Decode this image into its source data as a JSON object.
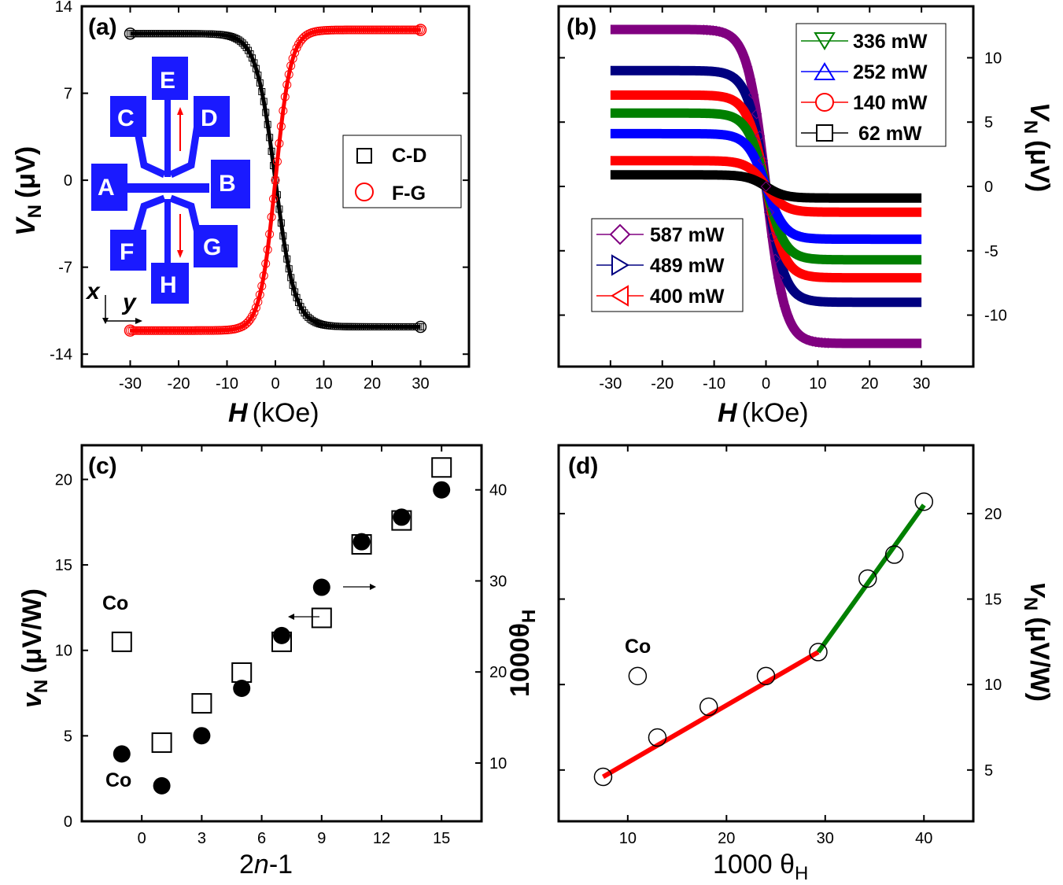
{
  "chart_data": [
    {
      "panel": "(a)",
      "type": "line",
      "xlabel_italic": "H",
      "xlabel_unit": "(kOe)",
      "ylabel_main": "V",
      "ylabel_sub": "N",
      "ylabel_unit": "(μV)",
      "xlim": [
        -40,
        40
      ],
      "ylim": [
        -15,
        14
      ],
      "xticks": [
        -30,
        -20,
        -10,
        0,
        10,
        20,
        30
      ],
      "yticks": [
        14,
        7,
        0,
        -7,
        -14
      ],
      "legend": [
        {
          "label": "C-D",
          "color": "#000000",
          "marker": "square"
        },
        {
          "label": "F-G",
          "color": "#ff0000",
          "marker": "circle"
        }
      ],
      "series": [
        {
          "name": "C-D",
          "color": "#000000",
          "saturation": 11.8,
          "field_scale": 4.0,
          "sign": -1
        },
        {
          "name": "F-G",
          "color": "#ff0000",
          "saturation": 12.1,
          "field_scale": 3.2,
          "sign": 1
        }
      ],
      "inset": {
        "pads": [
          "A",
          "B",
          "C",
          "D",
          "E",
          "F",
          "G",
          "H"
        ],
        "axis_x": "x",
        "axis_y": "y",
        "pad_color": "#1a1aff",
        "arrow_color": "#ff0000"
      }
    },
    {
      "panel": "(b)",
      "type": "line",
      "xlabel_italic": "H",
      "xlabel_unit": "(kOe)",
      "ylabel_main": "V",
      "ylabel_sub": "N",
      "ylabel_unit": "(μV)",
      "xlim": [
        -40,
        40
      ],
      "ylim": [
        -14,
        14
      ],
      "xticks": [
        -30,
        -20,
        -10,
        0,
        10,
        20,
        30
      ],
      "yticks": [
        10,
        5,
        0,
        -5,
        -10
      ],
      "legend_top": [
        {
          "label": "336 mW",
          "color": "#008000",
          "marker": "triangle-down"
        },
        {
          "label": "252 mW",
          "color": "#0000ff",
          "marker": "triangle-up"
        },
        {
          "label": "140 mW",
          "color": "#ff0000",
          "marker": "circle"
        },
        {
          "label": " 62 mW",
          "color": "#000000",
          "marker": "square"
        }
      ],
      "legend_bottom": [
        {
          "label": "587 mW",
          "color": "#800080",
          "marker": "diamond"
        },
        {
          "label": "489 mW",
          "color": "#000080",
          "marker": "triangle-right"
        },
        {
          "label": "400 mW",
          "color": "#ff0000",
          "marker": "triangle-left"
        }
      ],
      "series": [
        {
          "name": "62 mW",
          "color": "#000000",
          "saturation": 0.9
        },
        {
          "name": "140 mW",
          "color": "#ff0000",
          "saturation": 2.0
        },
        {
          "name": "252 mW",
          "color": "#0000ff",
          "saturation": 4.1
        },
        {
          "name": "336 mW",
          "color": "#008000",
          "saturation": 5.7
        },
        {
          "name": "400 mW",
          "color": "#ff0000",
          "saturation": 7.1
        },
        {
          "name": "489 mW",
          "color": "#000080",
          "saturation": 9.0
        },
        {
          "name": "587 mW",
          "color": "#800080",
          "saturation": 12.2
        }
      ]
    },
    {
      "panel": "(c)",
      "type": "scatter",
      "xlabel": "2n-1",
      "xlabel_pre": "2",
      "xlabel_italic": "n",
      "xlabel_post": "-1",
      "ylabel_main": "v",
      "ylabel_sub": "N",
      "ylabel_unit": "(μV/W)",
      "y2label_main": "1000θ",
      "y2label_sub": "H",
      "xlim": [
        -3,
        17
      ],
      "ylim": [
        0,
        22
      ],
      "y2lim": [
        3.6,
        44.9
      ],
      "xticks": [
        0,
        3,
        6,
        9,
        12,
        15
      ],
      "yticks": [
        0,
        5,
        10,
        15,
        20
      ],
      "y2ticks": [
        10,
        20,
        30,
        40
      ],
      "annotations": [
        "Co",
        "Co"
      ],
      "series": [
        {
          "name": "vN (left axis)",
          "marker": "open-square",
          "x": [
            -1,
            1,
            3,
            5,
            7,
            9,
            11,
            13,
            15
          ],
          "y": [
            10.5,
            4.6,
            6.9,
            8.7,
            10.5,
            11.9,
            16.2,
            17.6,
            20.7
          ]
        },
        {
          "name": "1000θH (right axis)",
          "marker": "filled-circle",
          "x": [
            -1,
            1,
            3,
            5,
            7,
            9,
            11,
            13,
            15
          ],
          "y": [
            11.0,
            7.5,
            13.0,
            18.2,
            24.0,
            29.3,
            34.3,
            37.0,
            40.0
          ]
        }
      ]
    },
    {
      "panel": "(d)",
      "type": "scatter",
      "xlabel_main": "1000 θ",
      "xlabel_sub": "H",
      "y2label_main": "v",
      "y2label_sub": "N",
      "y2label_unit": "(μV/W)",
      "xlim": [
        3,
        45
      ],
      "y2lim": [
        2,
        24
      ],
      "xticks": [
        10,
        20,
        30,
        40
      ],
      "y2ticks": [
        5,
        10,
        15,
        20
      ],
      "annotation": "Co",
      "points": {
        "x": [
          7.5,
          11.0,
          13.0,
          18.2,
          24.0,
          29.3,
          34.3,
          37.0,
          40.0
        ],
        "y": [
          4.6,
          10.5,
          6.9,
          8.7,
          10.5,
          11.9,
          16.2,
          17.6,
          20.7
        ]
      },
      "fit_lines": [
        {
          "color": "#ff0000",
          "x": [
            7.5,
            29.3
          ],
          "y": [
            4.6,
            11.9
          ]
        },
        {
          "color": "#008000",
          "x": [
            29.3,
            40.0
          ],
          "y": [
            11.9,
            20.5
          ]
        }
      ]
    }
  ]
}
